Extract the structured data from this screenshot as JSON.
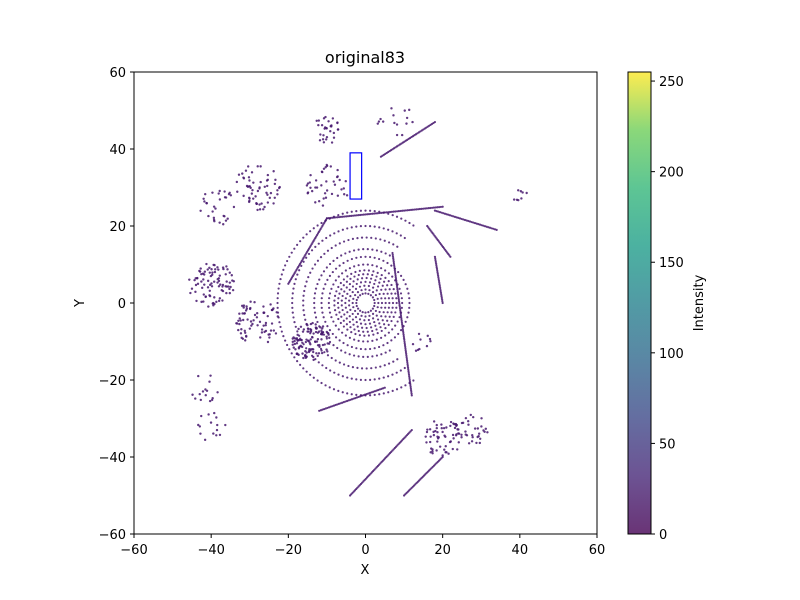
{
  "chart_data": {
    "type": "scatter",
    "title": "original83",
    "xlabel": "X",
    "ylabel": "Y",
    "xlim": [
      -60,
      60
    ],
    "ylim": [
      -60,
      60
    ],
    "xticks": [
      -60,
      -40,
      -20,
      0,
      20,
      40,
      60
    ],
    "yticks": [
      -60,
      -40,
      -20,
      0,
      20,
      40,
      60
    ],
    "grid": false,
    "colormap": "viridis",
    "colorbar": {
      "label": "Intensity",
      "range": [
        0,
        255
      ],
      "ticks": [
        0,
        50,
        100,
        150,
        200,
        250
      ]
    },
    "point_color": "#46176e",
    "box": {
      "color": "#0000ff",
      "x": [
        -4,
        -1
      ],
      "y": [
        27,
        39
      ]
    },
    "rings": {
      "center": [
        0,
        0
      ],
      "radii": [
        2.5,
        3.5,
        4.5,
        5.5,
        6.5,
        7.5,
        8.5,
        10,
        12,
        14,
        17,
        20,
        24
      ]
    },
    "line_features": [
      {
        "x": [
          -20,
          -10
        ],
        "y": [
          5,
          22
        ]
      },
      {
        "x": [
          -10,
          20
        ],
        "y": [
          22,
          25
        ]
      },
      {
        "x": [
          7,
          12
        ],
        "y": [
          13,
          -24
        ]
      },
      {
        "x": [
          18,
          34
        ],
        "y": [
          24,
          19
        ]
      },
      {
        "x": [
          16,
          22
        ],
        "y": [
          20,
          12
        ]
      },
      {
        "x": [
          18,
          20
        ],
        "y": [
          12,
          0
        ]
      },
      {
        "x": [
          -4,
          12
        ],
        "y": [
          -50,
          -33
        ]
      },
      {
        "x": [
          10,
          20
        ],
        "y": [
          -50,
          -40
        ]
      },
      {
        "x": [
          -12,
          5
        ],
        "y": [
          -28,
          -22
        ]
      },
      {
        "x": [
          4,
          18
        ],
        "y": [
          38,
          47
        ]
      }
    ],
    "point_clusters": [
      {
        "x": -40,
        "y": 5,
        "r": 6,
        "n": 90
      },
      {
        "x": -28,
        "y": 30,
        "r": 6,
        "n": 60
      },
      {
        "x": -14,
        "y": -10,
        "r": 5,
        "n": 110
      },
      {
        "x": -28,
        "y": -5,
        "r": 6,
        "n": 70
      },
      {
        "x": 20,
        "y": -35,
        "r": 5,
        "n": 60
      },
      {
        "x": 28,
        "y": -33,
        "r": 4,
        "n": 30
      },
      {
        "x": -10,
        "y": 45,
        "r": 4,
        "n": 30
      },
      {
        "x": -38,
        "y": 25,
        "r": 5,
        "n": 30
      },
      {
        "x": 40,
        "y": 28,
        "r": 2,
        "n": 8
      },
      {
        "x": -42,
        "y": -22,
        "r": 4,
        "n": 15
      },
      {
        "x": 8,
        "y": 47,
        "r": 5,
        "n": 15
      },
      {
        "x": -10,
        "y": 30,
        "r": 6,
        "n": 40
      },
      {
        "x": -40,
        "y": -32,
        "r": 5,
        "n": 15
      },
      {
        "x": 14,
        "y": -10,
        "r": 3,
        "n": 10
      }
    ]
  }
}
